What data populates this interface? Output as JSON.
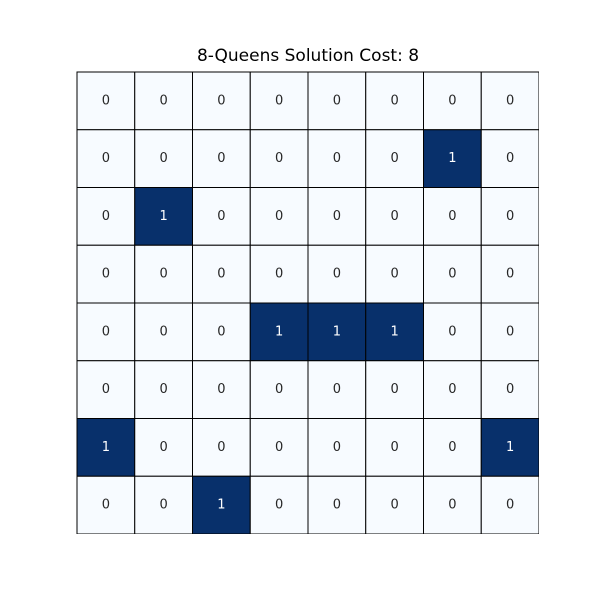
{
  "chart_data": {
    "type": "heatmap",
    "title": "8-Queens Solution Cost: 8",
    "rows": 8,
    "cols": 8,
    "values": [
      [
        0,
        0,
        0,
        0,
        0,
        0,
        0,
        0
      ],
      [
        0,
        0,
        0,
        0,
        0,
        0,
        1,
        0
      ],
      [
        0,
        1,
        0,
        0,
        0,
        0,
        0,
        0
      ],
      [
        0,
        0,
        0,
        0,
        0,
        0,
        0,
        0
      ],
      [
        0,
        0,
        0,
        1,
        1,
        1,
        0,
        0
      ],
      [
        0,
        0,
        0,
        0,
        0,
        0,
        0,
        0
      ],
      [
        1,
        0,
        0,
        0,
        0,
        0,
        0,
        1
      ],
      [
        0,
        0,
        1,
        0,
        0,
        0,
        0,
        0
      ]
    ],
    "colorbar": false,
    "grid": true,
    "colors": {
      "low": "#f7fbff",
      "high": "#08306b",
      "grid_line": "#000000",
      "text_on_low": "#262626",
      "text_on_high": "#ffffff"
    }
  }
}
